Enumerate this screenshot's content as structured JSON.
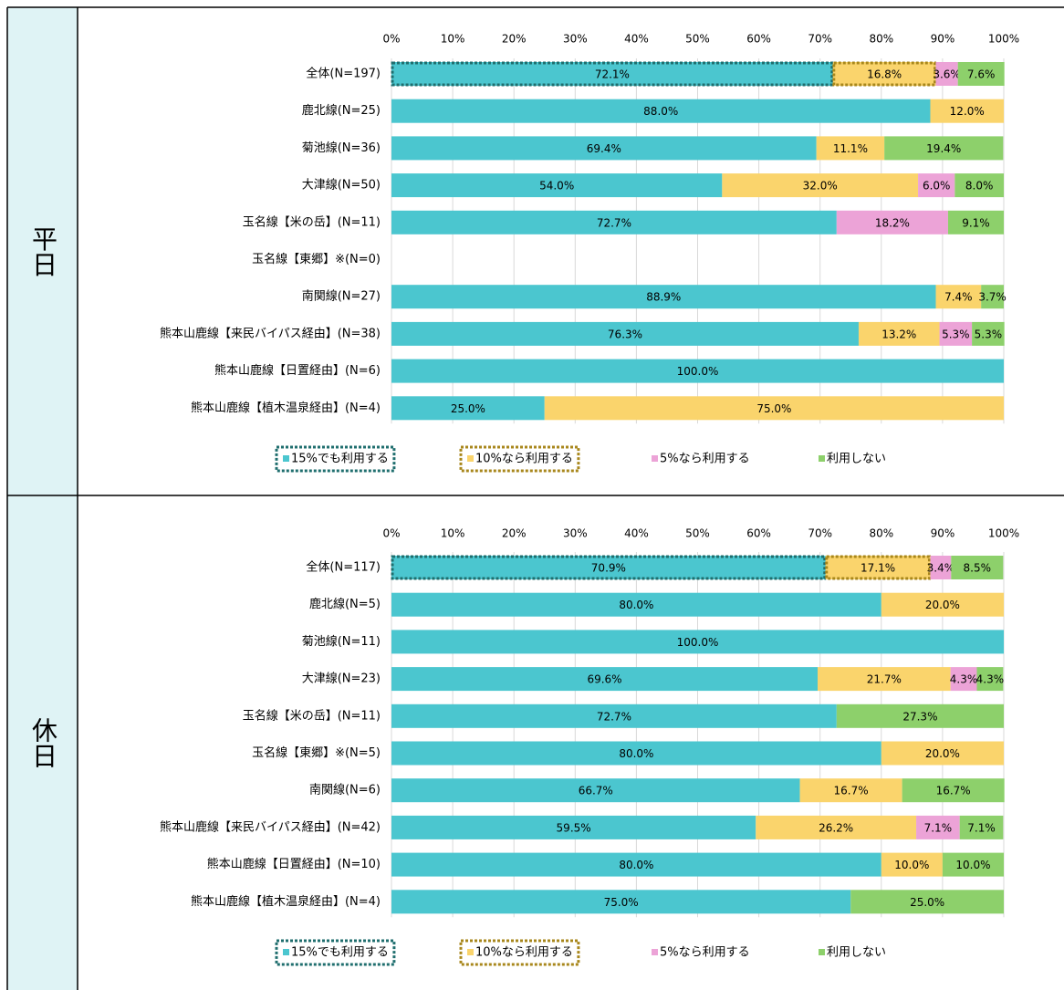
{
  "chart_data": [
    {
      "type": "stacked_barh",
      "title": "平日",
      "categories": [
        "全体(N=197)",
        "鹿北線(N=25)",
        "菊池線(N=36)",
        "大津線(N=50)",
        "玉名線【米の岳】(N=11)",
        "玉名線【東郷】※(N=0)",
        "南関線(N=27)",
        "熊本山鹿線【来民バイパス経由】(N=38)",
        "熊本山鹿線【日置経由】(N=6)",
        "熊本山鹿線【植木温泉経由】(N=4)"
      ],
      "series": [
        {
          "name": "15%でも利用する",
          "color": "#4bc6cf",
          "values": [
            72.1,
            88.0,
            69.4,
            54.0,
            72.7,
            null,
            88.9,
            76.3,
            100.0,
            25.0
          ],
          "value_labels": [
            "72.1%",
            "88.0%",
            "69.4%",
            "54.0%",
            "72.7%",
            null,
            "88.9%",
            "76.3%",
            "100.0%",
            "25.0%"
          ]
        },
        {
          "name": "10%なら利用する",
          "color": "#fad46c",
          "values": [
            16.8,
            12.0,
            11.1,
            32.0,
            0,
            null,
            7.4,
            13.2,
            0,
            75.0
          ],
          "value_labels": [
            "16.8%",
            "12.0%",
            "11.1%",
            "32.0%",
            null,
            null,
            "7.4%",
            "13.2%",
            null,
            "75.0%"
          ]
        },
        {
          "name": "5%なら利用する",
          "color": "#eca3d7",
          "values": [
            3.6,
            0,
            0,
            6.0,
            18.2,
            null,
            0,
            5.3,
            0,
            0
          ],
          "value_labels": [
            "3.6%",
            null,
            null,
            "6.0%",
            "18.2%",
            null,
            null,
            "5.3%",
            null,
            null
          ]
        },
        {
          "name": "利用しない",
          "color": "#8dd06b",
          "values": [
            7.6,
            0,
            19.4,
            8.0,
            9.1,
            null,
            3.7,
            5.3,
            0,
            0
          ],
          "value_labels": [
            "7.6%",
            null,
            "19.4%",
            "8.0%",
            "9.1%",
            null,
            "3.7%",
            "5.3%",
            null,
            null
          ]
        }
      ],
      "xlim": [
        0,
        100
      ],
      "xticks": [
        {
          "value": 0,
          "label": "0%"
        },
        {
          "value": 10,
          "label": "10%"
        },
        {
          "value": 20,
          "label": "20%"
        },
        {
          "value": 30,
          "label": "30%"
        },
        {
          "value": 40,
          "label": "40%"
        },
        {
          "value": 50,
          "label": "50%"
        },
        {
          "value": 60,
          "label": "60%"
        },
        {
          "value": 70,
          "label": "70%"
        },
        {
          "value": 80,
          "label": "80%"
        },
        {
          "value": 90,
          "label": "90%"
        },
        {
          "value": 100,
          "label": "100%"
        }
      ],
      "grid": true,
      "legend": "bottom"
    },
    {
      "type": "stacked_barh",
      "title": "休日",
      "categories": [
        "全体(N=117)",
        "鹿北線(N=5)",
        "菊池線(N=11)",
        "大津線(N=23)",
        "玉名線【米の岳】(N=11)",
        "玉名線【東郷】※(N=5)",
        "南関線(N=6)",
        "熊本山鹿線【来民バイパス経由】(N=42)",
        "熊本山鹿線【日置経由】(N=10)",
        "熊本山鹿線【植木温泉経由】(N=4)"
      ],
      "series": [
        {
          "name": "15%でも利用する",
          "color": "#4bc6cf",
          "values": [
            70.9,
            80.0,
            100.0,
            69.6,
            72.7,
            80.0,
            66.7,
            59.5,
            80.0,
            75.0
          ],
          "value_labels": [
            "70.9%",
            "80.0%",
            "100.0%",
            "69.6%",
            "72.7%",
            "80.0%",
            "66.7%",
            "59.5%",
            "80.0%",
            "75.0%"
          ]
        },
        {
          "name": "10%なら利用する",
          "color": "#fad46c",
          "values": [
            17.1,
            20.0,
            0,
            21.7,
            0,
            20.0,
            16.7,
            26.2,
            10.0,
            0
          ],
          "value_labels": [
            "17.1%",
            "20.0%",
            null,
            "21.7%",
            null,
            "20.0%",
            "16.7%",
            "26.2%",
            "10.0%",
            null
          ]
        },
        {
          "name": "5%なら利用する",
          "color": "#eca3d7",
          "values": [
            3.4,
            0,
            0,
            4.3,
            0,
            0,
            0,
            7.1,
            0,
            0
          ],
          "value_labels": [
            "3.4%",
            null,
            null,
            "4.3%",
            null,
            null,
            null,
            "7.1%",
            null,
            null
          ]
        },
        {
          "name": "利用しない",
          "color": "#8dd06b",
          "values": [
            8.5,
            0,
            0,
            4.3,
            27.3,
            0,
            16.7,
            7.1,
            10.0,
            25.0
          ],
          "value_labels": [
            "8.5%",
            null,
            null,
            "4.3%",
            "27.3%",
            null,
            "16.7%",
            "7.1%",
            "10.0%",
            "25.0%"
          ]
        }
      ],
      "xlim": [
        0,
        100
      ],
      "xticks": [
        {
          "value": 0,
          "label": "0%"
        },
        {
          "value": 10,
          "label": "10%"
        },
        {
          "value": 20,
          "label": "20%"
        },
        {
          "value": 30,
          "label": "30%"
        },
        {
          "value": 40,
          "label": "40%"
        },
        {
          "value": 50,
          "label": "50%"
        },
        {
          "value": 60,
          "label": "60%"
        },
        {
          "value": 70,
          "label": "70%"
        },
        {
          "value": 80,
          "label": "80%"
        },
        {
          "value": 90,
          "label": "90%"
        },
        {
          "value": 100,
          "label": "100%"
        }
      ],
      "grid": true,
      "legend": "bottom"
    }
  ]
}
